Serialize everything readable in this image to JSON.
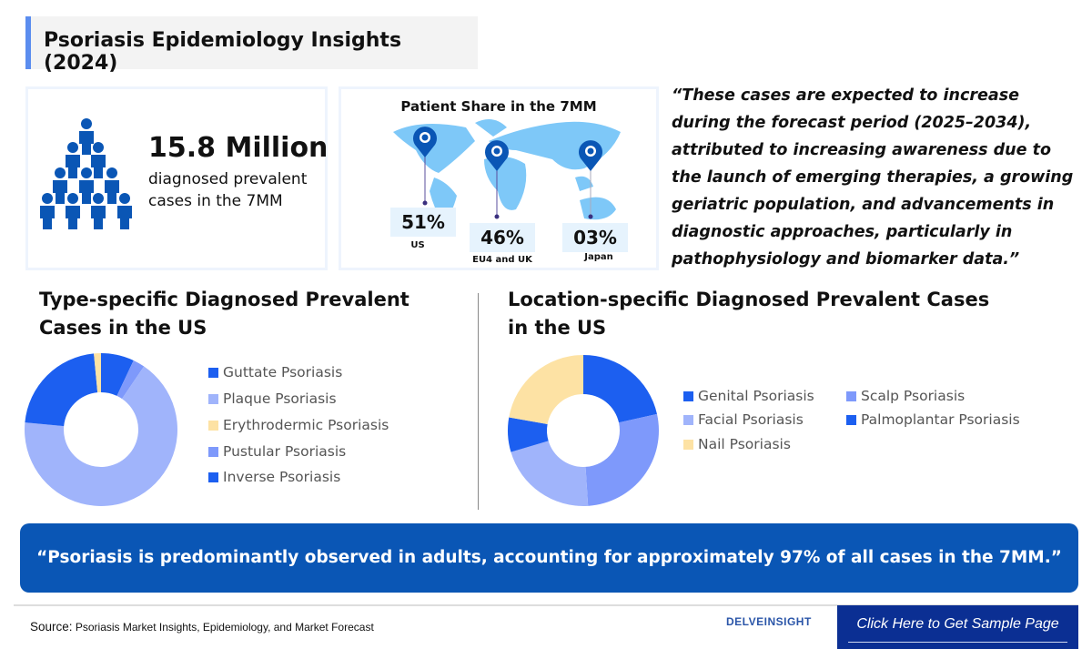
{
  "header": {
    "title": "Psoriasis Epidemiology Insights (2024)",
    "accent": "#5b8def"
  },
  "stat": {
    "value": "15.8 Million",
    "description": "diagnosed prevalent cases in the 7MM",
    "icon": "people-pyramid-icon"
  },
  "patient_share": {
    "title": "Patient Share in the 7MM",
    "regions": [
      {
        "label": "US",
        "value": "51%"
      },
      {
        "label": "EU4 and UK",
        "value": "46%"
      },
      {
        "label": "Japan",
        "value": "03%"
      }
    ]
  },
  "quote": "“These cases are expected to increase during the forecast period (2025–2034), attributed to increasing awareness due to the launch of emerging therapies, a growing geriatric population, and advancements in diagnostic approaches, particularly in pathophysiology and biomarker data.”",
  "chart_data": [
    {
      "type": "pie",
      "title": "Type-specific Diagnosed Prevalent Cases in the US",
      "donut": true,
      "legend": "right",
      "categories": [
        "Guttate Psoriasis",
        "Plaque Psoriasis",
        "Erythrodermic Psoriasis",
        "Pustular Psoriasis",
        "Inverse Psoriasis"
      ],
      "values": [
        7,
        67,
        1.5,
        2.5,
        22
      ],
      "colors": [
        "#1c5ff0",
        "#a0b4fb",
        "#fde2a4",
        "#7e99fb",
        "#1c5ff0"
      ],
      "draw_order": [
        0,
        3,
        1,
        4,
        2
      ]
    },
    {
      "type": "pie",
      "title": "Location-specific Diagnosed Prevalent Cases in the US",
      "donut": true,
      "legend": "right",
      "categories": [
        "Genital Psoriasis",
        "Scalp Psoriasis",
        "Facial Psoriasis",
        "Palmoplantar Psoriasis",
        "Nail Psoriasis"
      ],
      "values": [
        21.5,
        27.5,
        21.4,
        7.4,
        22.2
      ],
      "colors": [
        "#1c5ff0",
        "#7e99fb",
        "#a0b4fb",
        "#1c5ff0",
        "#fde2a4"
      ],
      "draw_order": [
        0,
        1,
        2,
        3,
        4
      ]
    }
  ],
  "banner": "“Psoriasis is predominantly observed in adults, accounting for approximately 97% of all cases in the 7MM.”",
  "footer": {
    "source_label": "Source:",
    "source_text": "Psoriasis Market Insights, Epidemiology, and Market Forecast",
    "logo": "DELVEINSIGHT",
    "cta": "Click Here to Get Sample Page"
  }
}
